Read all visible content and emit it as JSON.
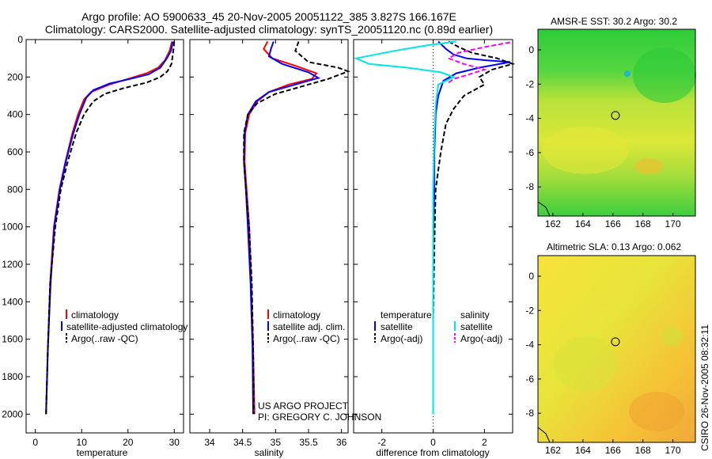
{
  "title_line1": "Argo profile: AO 5900633_45 20-Nov-2005 20051122_385 3.827S 166.167E",
  "title_line2": "Climatology: CARS2000. Satellite-adjusted climatology: synTS_20051120.nc (0.89d earlier)",
  "chart_data": [
    {
      "type": "line",
      "panel": "temperature",
      "xlabel": "temperature",
      "ylabel": "",
      "xlim": [
        -2,
        32
      ],
      "ylim": [
        2100,
        0
      ],
      "xticks": [
        0,
        10,
        20,
        30
      ],
      "yticks": [
        0,
        200,
        400,
        600,
        800,
        1000,
        1200,
        1400,
        1600,
        1800,
        2000
      ],
      "legend": [
        "climatology",
        "satellite-adjusted climatology",
        "Argo(..raw -QC)"
      ],
      "series": [
        {
          "name": "climatology",
          "color": "#ff0000",
          "dash": false,
          "x": [
            29.5,
            29.0,
            28.0,
            26.5,
            24.0,
            20.0,
            16.0,
            12.0,
            10.5,
            9.2,
            8.0,
            6.5,
            5.2,
            4.0,
            3.2,
            2.7,
            2.3
          ],
          "y": [
            10,
            60,
            110,
            150,
            180,
            210,
            240,
            280,
            320,
            400,
            500,
            650,
            800,
            1000,
            1300,
            1650,
            2000
          ]
        },
        {
          "name": "satellite-adjusted climatology",
          "color": "#0000ff",
          "dash": false,
          "x": [
            29.7,
            29.3,
            28.4,
            27.0,
            24.5,
            20.5,
            16.0,
            12.5,
            11.0,
            9.5,
            8.2,
            6.6,
            5.3,
            4.1,
            3.3,
            2.7,
            2.3
          ],
          "y": [
            10,
            60,
            100,
            150,
            185,
            210,
            235,
            270,
            310,
            400,
            500,
            650,
            800,
            1000,
            1300,
            1650,
            2000
          ]
        },
        {
          "name": "Argo(..raw -QC)",
          "color": "#000000",
          "dash": true,
          "x": [
            30.0,
            29.8,
            29.4,
            28.5,
            27.0,
            24.0,
            19.0,
            15.0,
            12.5,
            10.5,
            8.8,
            7.0,
            5.5,
            4.3,
            3.2,
            2.7,
            2.3
          ],
          "y": [
            10,
            60,
            130,
            170,
            200,
            230,
            260,
            290,
            330,
            400,
            500,
            650,
            800,
            1000,
            1300,
            1650,
            2000
          ]
        }
      ]
    },
    {
      "type": "line",
      "panel": "salinity",
      "xlabel": "salinity",
      "xlim": [
        33.7,
        36.1
      ],
      "ylim": [
        2100,
        0
      ],
      "xticks": [
        34,
        34.5,
        35,
        35.5,
        36
      ],
      "yticks": [
        0,
        200,
        400,
        600,
        800,
        1000,
        1200,
        1400,
        1600,
        1800,
        2000
      ],
      "legend": [
        "climatology",
        "satellite adj. clim.",
        "Argo(..raw -QC)"
      ],
      "annotation": [
        "US ARGO PROJECT",
        "PI: GREGORY C. JOHNSON"
      ],
      "series": [
        {
          "name": "climatology",
          "color": "#ff0000",
          "dash": false,
          "x": [
            34.88,
            34.82,
            34.95,
            35.3,
            35.62,
            35.55,
            35.2,
            34.9,
            34.72,
            34.6,
            34.54,
            34.53,
            34.56,
            34.6,
            34.63,
            34.66,
            34.68
          ],
          "y": [
            10,
            50,
            100,
            140,
            180,
            210,
            240,
            280,
            330,
            400,
            500,
            650,
            800,
            1000,
            1300,
            1650,
            2000
          ]
        },
        {
          "name": "satellite adj. clim.",
          "color": "#0000ff",
          "dash": false,
          "x": [
            34.97,
            34.93,
            34.9,
            35.1,
            35.5,
            35.65,
            35.3,
            34.9,
            34.7,
            34.58,
            34.53,
            34.52,
            34.55,
            34.58,
            34.62,
            34.65,
            34.66
          ],
          "y": [
            10,
            50,
            90,
            130,
            175,
            205,
            240,
            280,
            330,
            400,
            500,
            650,
            800,
            1000,
            1300,
            1650,
            2000
          ]
        },
        {
          "name": "Argo(..raw -QC)",
          "color": "#000000",
          "dash": true,
          "x": [
            35.35,
            35.3,
            35.5,
            35.95,
            36.1,
            35.8,
            35.4,
            35.0,
            34.72,
            34.58,
            34.52,
            34.52,
            34.55,
            34.6,
            34.64,
            34.66,
            34.67
          ],
          "y": [
            10,
            60,
            120,
            150,
            170,
            210,
            250,
            290,
            340,
            400,
            500,
            650,
            800,
            1000,
            1300,
            1650,
            2000
          ]
        }
      ]
    },
    {
      "type": "line",
      "panel": "difference",
      "xlabel": "difference from climatology",
      "xlim": [
        -3.1,
        3.1
      ],
      "ylim": [
        2100,
        0
      ],
      "xticks": [
        -2,
        0,
        2
      ],
      "yticks": [
        0,
        200,
        400,
        600,
        800,
        1000,
        1200,
        1400,
        1600,
        1800,
        2000
      ],
      "legend_columns": [
        {
          "header": "temperature",
          "entries": [
            "satellite",
            "Argo(-adj)"
          ]
        },
        {
          "header": "salinity",
          "entries": [
            "satellite",
            "Argo(-adj)"
          ]
        }
      ],
      "series": [
        {
          "name": "temperature satellite",
          "color": "#0000ff",
          "dash": false,
          "x": [
            0.2,
            0.5,
            0.8,
            1.3,
            2.0,
            3.0,
            1.8,
            0.9,
            0.4,
            0.2,
            0.1,
            0.05,
            0.05,
            0.0,
            0.0,
            0.0
          ],
          "y": [
            10,
            50,
            80,
            100,
            110,
            120,
            150,
            180,
            220,
            300,
            400,
            600,
            800,
            1100,
            1500,
            2000
          ]
        },
        {
          "name": "temperature Argo(-adj)",
          "color": "#000000",
          "dash": true,
          "x": [
            0.6,
            1.0,
            1.5,
            2.5,
            3.1,
            2.3,
            1.8,
            2.0,
            1.2,
            0.8,
            0.5,
            0.3,
            0.1,
            0.05,
            0.0,
            0.0
          ],
          "y": [
            10,
            40,
            70,
            100,
            130,
            160,
            200,
            240,
            300,
            370,
            450,
            600,
            800,
            1100,
            1500,
            2000
          ]
        },
        {
          "name": "salinity satellite",
          "color": "#00e5e5",
          "dash": false,
          "x": [
            0.9,
            -0.2,
            -1.5,
            -3.0,
            -2.5,
            -1.0,
            0.3,
            0.8,
            0.2,
            0.1,
            0.05,
            0.0,
            0.0,
            0.0,
            0.0
          ],
          "y": [
            10,
            30,
            60,
            100,
            130,
            150,
            175,
            200,
            240,
            350,
            500,
            800,
            1100,
            1500,
            2000
          ]
        },
        {
          "name": "salinity Argo(-adj)",
          "color": "#ff00ff",
          "dash": true,
          "x": [
            3.0,
            2.0,
            1.0,
            0.6,
            1.2,
            2.0,
            1.3,
            0.8,
            0.6
          ],
          "y": [
            15,
            40,
            70,
            100,
            130,
            160,
            190,
            210,
            230
          ]
        }
      ]
    },
    {
      "type": "heatmap",
      "panel": "sst-map",
      "title": "AMSR-E SST: 30.2 Argo: 30.2",
      "xlim": [
        161,
        171.5
      ],
      "ylim": [
        -9.7,
        1.2
      ],
      "xticks": [
        162,
        164,
        166,
        168,
        170
      ],
      "yticks": [
        0,
        -2,
        -4,
        -6,
        -8
      ],
      "marker": {
        "lon": 166.167,
        "lat": -3.827
      }
    },
    {
      "type": "heatmap",
      "panel": "sla-map",
      "title": "Altimetric SLA: 0.13 Argo: 0.062",
      "xlim": [
        161,
        171.5
      ],
      "ylim": [
        -9.7,
        1.2
      ],
      "xticks": [
        162,
        164,
        166,
        168,
        170
      ],
      "yticks": [
        0,
        -2,
        -4,
        -6,
        -8
      ],
      "marker": {
        "lon": 166.167,
        "lat": -3.827
      }
    }
  ],
  "footer_right": "CSIRO 26-Nov-2005 08:32:11"
}
